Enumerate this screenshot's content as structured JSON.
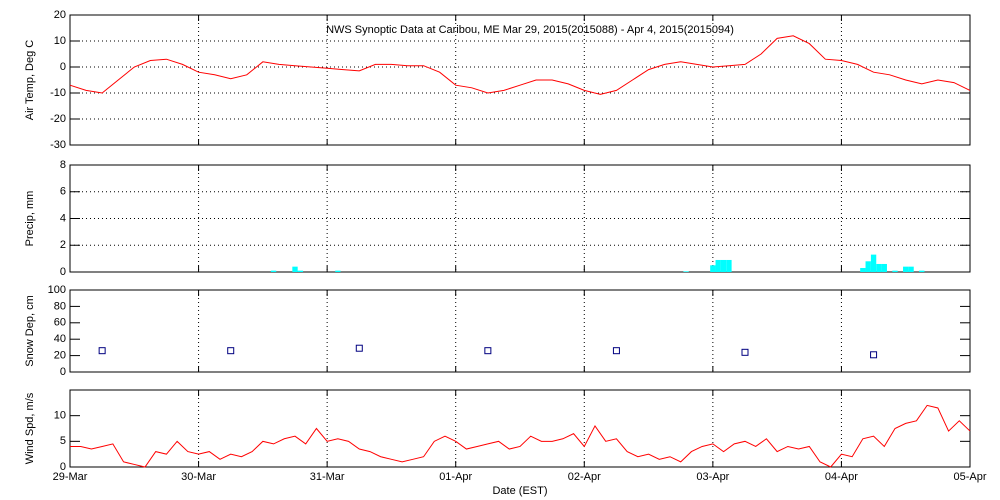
{
  "chart_data": [
    {
      "type": "line",
      "title": "NWS Synoptic Data at Caribou, ME   Mar 29, 2015(2015088) - Apr  4, 2015(2015094)",
      "y_label": "Air Temp, Deg C",
      "color": "#ff0000",
      "grid": "both",
      "xlim": [
        0,
        168
      ],
      "ylim": [
        -30,
        20
      ],
      "yticks": [
        -30,
        -20,
        -10,
        0,
        10,
        20
      ],
      "x": [
        0,
        3,
        6,
        9,
        12,
        15,
        18,
        21,
        24,
        27,
        30,
        33,
        36,
        39,
        42,
        45,
        48,
        51,
        54,
        57,
        60,
        63,
        66,
        69,
        72,
        75,
        78,
        81,
        84,
        87,
        90,
        93,
        96,
        99,
        102,
        105,
        108,
        111,
        114,
        117,
        120,
        123,
        126,
        129,
        132,
        135,
        138,
        141,
        144,
        147,
        150,
        153,
        156,
        159,
        162,
        165,
        168
      ],
      "values": [
        -7,
        -9,
        -10,
        -5,
        0,
        2.5,
        3,
        1,
        -2,
        -3,
        -4.5,
        -3,
        2,
        1,
        0.5,
        0,
        -0.5,
        -1,
        -1.5,
        1,
        1,
        0.5,
        0.5,
        -2,
        -7,
        -8,
        -10,
        -9,
        -7,
        -5,
        -5,
        -6.5,
        -9,
        -10.5,
        -9,
        -5,
        -1,
        1,
        2,
        1,
        0,
        0.5,
        1,
        5,
        11,
        12,
        9,
        3,
        2.5,
        1,
        -2,
        -3,
        -5,
        -6.5,
        -5,
        -6,
        -9
      ]
    },
    {
      "type": "bar",
      "y_label": "Precip, mm",
      "color": "#00ffff",
      "grid": "both",
      "xlim": [
        0,
        168
      ],
      "ylim": [
        0,
        8
      ],
      "yticks": [
        0,
        2,
        4,
        6,
        8
      ],
      "x": [
        38,
        42,
        43,
        50,
        115,
        120,
        121,
        122,
        123,
        148,
        149,
        150,
        151,
        152,
        154,
        156,
        157,
        159
      ],
      "values": [
        0.1,
        0.4,
        0.1,
        0.1,
        0.05,
        0.5,
        0.9,
        0.9,
        0.9,
        0.3,
        0.8,
        1.3,
        0.6,
        0.6,
        0.1,
        0.4,
        0.4,
        0.1
      ]
    },
    {
      "type": "scatter",
      "y_label": "Snow Dep, cm",
      "color": "#000080",
      "grid": "x",
      "xlim": [
        0,
        168
      ],
      "ylim": [
        0,
        100
      ],
      "yticks": [
        0,
        20,
        40,
        60,
        80,
        100
      ],
      "x": [
        6,
        30,
        54,
        78,
        102,
        126,
        150
      ],
      "values": [
        26,
        26,
        29,
        26,
        26,
        24,
        21
      ]
    },
    {
      "type": "line",
      "y_label": "Wind Spd, m/s",
      "x_label": "Date (EST)",
      "color": "#ff0000",
      "grid": "x",
      "xlim": [
        0,
        168
      ],
      "ylim": [
        0,
        15
      ],
      "yticks": [
        0,
        5,
        10
      ],
      "xticks": [
        {
          "value": 0,
          "label": "29-Mar"
        },
        {
          "value": 24,
          "label": "30-Mar"
        },
        {
          "value": 48,
          "label": "31-Mar"
        },
        {
          "value": 72,
          "label": "01-Apr"
        },
        {
          "value": 96,
          "label": "02-Apr"
        },
        {
          "value": 120,
          "label": "03-Apr"
        },
        {
          "value": 144,
          "label": "04-Apr"
        },
        {
          "value": 168,
          "label": "05-Apr"
        }
      ],
      "x": [
        0,
        2,
        4,
        6,
        8,
        10,
        12,
        14,
        16,
        18,
        20,
        22,
        24,
        26,
        28,
        30,
        32,
        34,
        36,
        38,
        40,
        42,
        44,
        46,
        48,
        50,
        52,
        54,
        56,
        58,
        60,
        62,
        64,
        66,
        68,
        70,
        72,
        74,
        76,
        78,
        80,
        82,
        84,
        86,
        88,
        90,
        92,
        94,
        96,
        98,
        100,
        102,
        104,
        106,
        108,
        110,
        112,
        114,
        116,
        118,
        120,
        122,
        124,
        126,
        128,
        130,
        132,
        134,
        136,
        138,
        140,
        142,
        144,
        146,
        148,
        150,
        152,
        154,
        156,
        158,
        160,
        162,
        164,
        166,
        168
      ],
      "values": [
        4,
        4,
        3.5,
        4,
        4.5,
        1,
        0.5,
        0,
        3,
        2.5,
        5,
        3,
        2.5,
        3,
        1.5,
        2.5,
        2,
        3,
        5,
        4.5,
        5.5,
        6,
        4.5,
        7.5,
        5,
        5.5,
        5,
        3.5,
        3,
        2,
        1.5,
        1,
        1.5,
        2,
        5,
        6,
        5,
        3.5,
        4,
        4.5,
        5,
        3.5,
        4,
        6,
        5,
        5,
        5.5,
        6.5,
        4,
        8,
        5,
        5.5,
        3,
        2,
        2.5,
        1.5,
        2,
        1,
        3,
        4,
        4.5,
        3,
        4.5,
        5,
        4,
        5.5,
        3,
        4,
        3.5,
        4,
        1,
        0,
        2.5,
        2,
        5.5,
        6,
        4,
        7.5,
        8.5,
        9,
        12,
        11.5,
        7,
        9,
        7
      ]
    }
  ]
}
